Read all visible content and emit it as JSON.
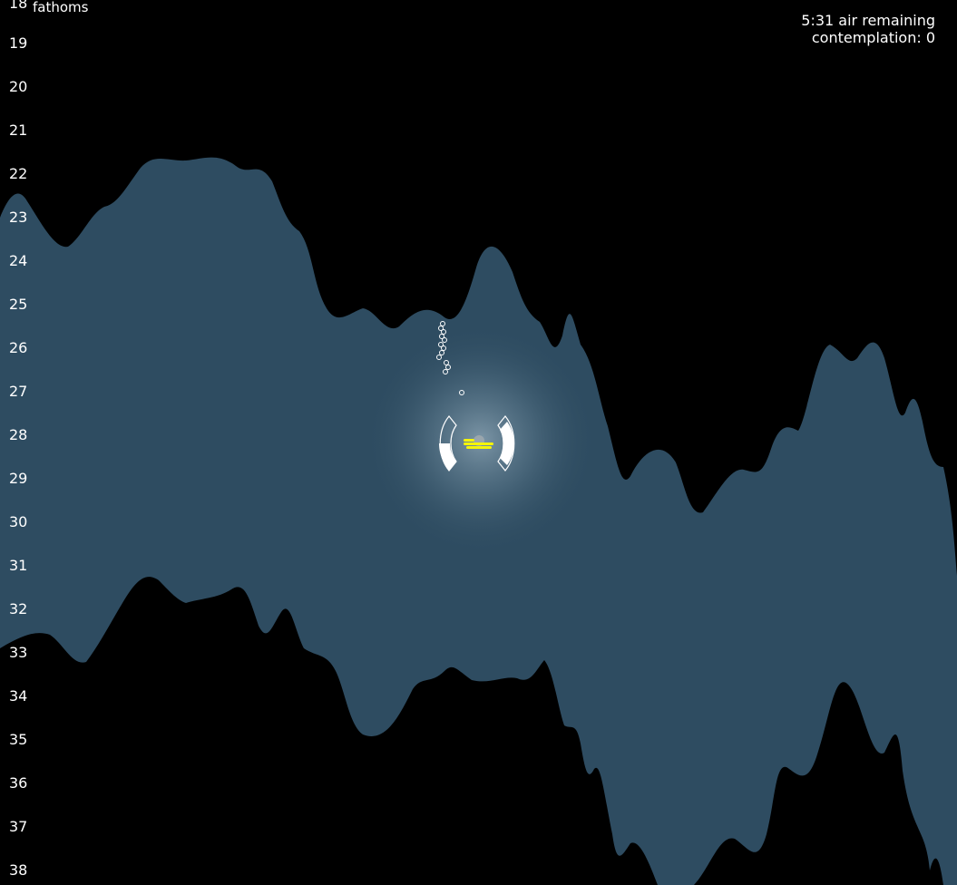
{
  "depth_scale": {
    "unit": "fathoms",
    "labels": [
      "18",
      "19",
      "20",
      "21",
      "22",
      "23",
      "24",
      "25",
      "26",
      "27",
      "28",
      "29",
      "30",
      "31",
      "32",
      "33",
      "34",
      "35",
      "36",
      "37",
      "38"
    ]
  },
  "hud": {
    "air_remaining": "5:31 air remaining",
    "contemplation": "contemplation: 0"
  },
  "colors": {
    "background": "#000000",
    "water": "#2e4c61",
    "light_glow": "#8aa3b3",
    "diver": "#f5f50a",
    "gauge": "#ffffff"
  },
  "icons": {
    "diver": "diver-icon",
    "bubbles": "bubble-icon",
    "air_gauge": "air-gauge-icon"
  }
}
